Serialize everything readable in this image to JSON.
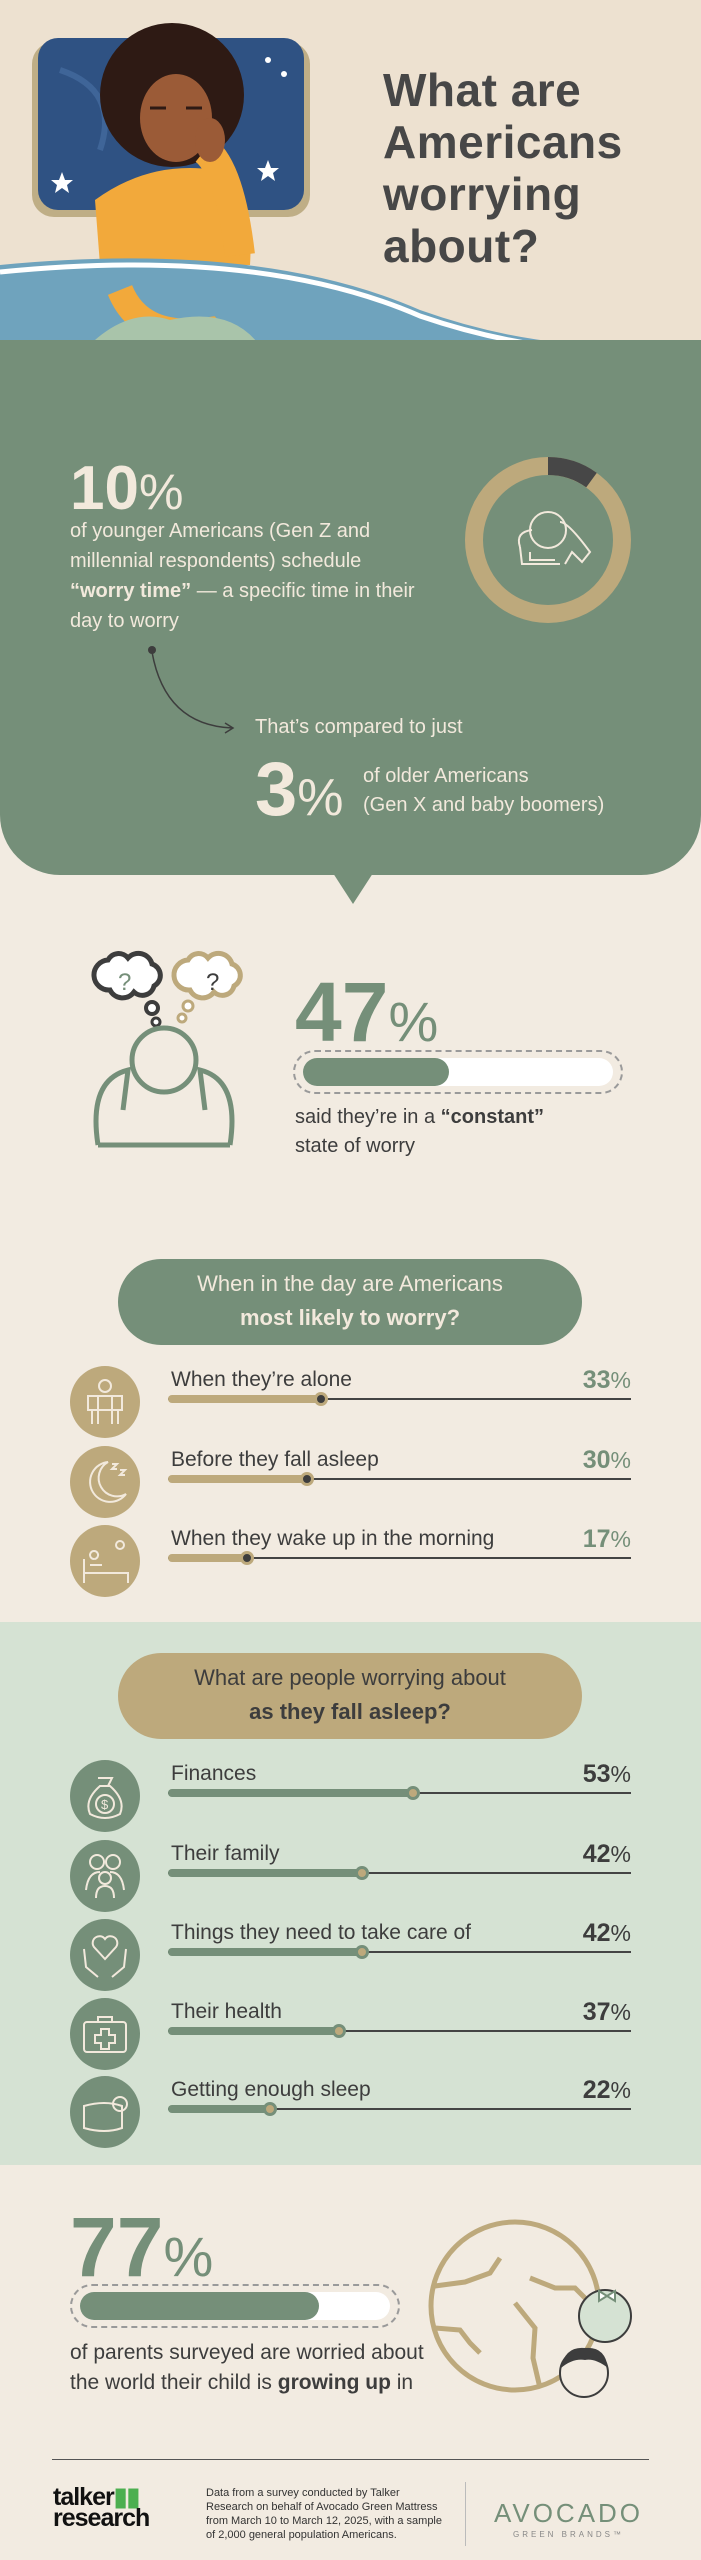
{
  "header": {
    "title": "What are Americans worrying about?"
  },
  "units": {
    "percent": "%"
  },
  "younger_stat": {
    "value": "10",
    "text_pre": "of younger Americans (Gen Z and millennial respondents) schedule ",
    "text_bold": "“worry time”",
    "text_post": " — a specific time in their day to worry",
    "donut_fraction": 0.1
  },
  "older_stat": {
    "intro": "That’s compared to just",
    "value": "3",
    "line1": "of older Americans",
    "line2": "(Gen X and baby boomers)"
  },
  "constant_stat": {
    "value": 47,
    "text_pre": "said they’re in a ",
    "text_bold": "“constant”",
    "text_post": " state of worry"
  },
  "when_section": {
    "title_line1": "When in the day are Americans",
    "title_line2": "most likely to worry?",
    "rows": [
      {
        "label": "When they’re alone",
        "value": 33,
        "icon": "person-alone-icon"
      },
      {
        "label": "Before they fall asleep",
        "value": 30,
        "icon": "moon-sleep-icon"
      },
      {
        "label": "When they wake up in the morning",
        "value": 17,
        "icon": "wake-up-bed-icon"
      }
    ]
  },
  "asleep_section": {
    "title_line1": "What are people worrying about",
    "title_line2": "as they fall asleep?",
    "rows": [
      {
        "label": "Finances",
        "value": 53,
        "icon": "money-bag-icon"
      },
      {
        "label": "Their family",
        "value": 42,
        "icon": "family-icon"
      },
      {
        "label": "Things they need to take care of",
        "value": 42,
        "icon": "heart-hands-icon"
      },
      {
        "label": "Their health",
        "value": 37,
        "icon": "first-aid-kit-icon"
      },
      {
        "label": "Getting enough sleep",
        "value": 22,
        "icon": "pillow-icon"
      }
    ]
  },
  "parents_stat": {
    "value": 77,
    "text_pre": "of parents surveyed are worried about the world their child is ",
    "text_bold": "growing up",
    "text_post": " in"
  },
  "footer": {
    "talker_logo": "talker research",
    "note": "Data from a survey conducted by Talker Research on behalf of Avocado Green Mattress from March 10 to March 12, 2025, with a sample of 2,000 general population Americans.",
    "brand": "AVOCADO",
    "brand_sub": "GREEN BRANDS™"
  },
  "colors": {
    "green": "#758f79",
    "light_green": "#d5e2d3",
    "tan": "#bda97c",
    "cream": "#f2ebe1",
    "dark": "#3d3d3d"
  }
}
